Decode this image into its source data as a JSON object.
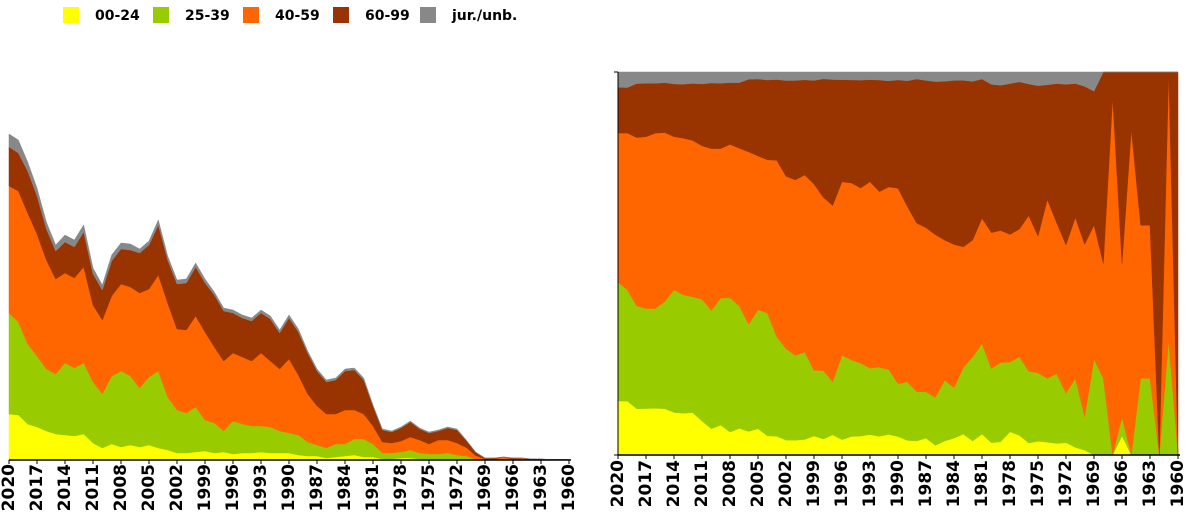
{
  "chart_data": {
    "type": "area",
    "legend": "top-left",
    "categories": [
      "2020",
      null,
      null,
      "2017",
      null,
      null,
      "2014",
      null,
      null,
      "2011",
      null,
      null,
      "2008",
      null,
      null,
      "2005",
      null,
      null,
      "2002",
      null,
      null,
      "1999",
      null,
      null,
      "1996",
      null,
      null,
      "1993",
      null,
      null,
      "1990",
      null,
      null,
      "1987",
      null,
      null,
      "1984",
      null,
      null,
      "1981",
      null,
      null,
      "1978",
      null,
      null,
      "1975",
      null,
      null,
      "1972",
      null,
      null,
      "1969",
      null,
      null,
      "1966",
      null,
      null,
      "1963",
      null,
      null,
      "1960"
    ],
    "series": [
      {
        "name": "00-24",
        "color": "#ffff00",
        "values": [
          46,
          45,
          36,
          33,
          29,
          26,
          25,
          24,
          26,
          17,
          12,
          16,
          13,
          15,
          13,
          15,
          12,
          10,
          7,
          7,
          8,
          9,
          7,
          8,
          6,
          7,
          7,
          8,
          7,
          7,
          7,
          5,
          4,
          4,
          2,
          3,
          4,
          5,
          3,
          3,
          1,
          1,
          2,
          2,
          1,
          1,
          1,
          1,
          1,
          0.4,
          0.1,
          0,
          0,
          0,
          0.1,
          0,
          0,
          0,
          0,
          0,
          0
        ]
      },
      {
        "name": "25-39",
        "color": "#99cc00",
        "values": [
          101,
          93,
          80,
          71,
          62,
          60,
          72,
          68,
          71,
          61,
          54,
          68,
          76,
          69,
          59,
          68,
          77,
          53,
          43,
          40,
          45,
          31,
          30,
          21,
          33,
          29,
          27,
          26,
          26,
          22,
          20,
          20,
          14,
          11,
          10,
          13,
          12,
          16,
          18,
          13,
          6,
          6,
          6,
          8,
          6,
          5,
          5,
          6,
          4,
          3.6,
          0.7,
          0.5,
          0.4,
          0,
          0.1,
          0,
          0.2,
          0.2,
          0,
          0.15,
          0
        ]
      },
      {
        "name": "40-59",
        "color": "#ff6600",
        "values": [
          127,
          131,
          131,
          122,
          109,
          95,
          90,
          90,
          96,
          77,
          74,
          80,
          87,
          89,
          95,
          88,
          96,
          94,
          81,
          83,
          91,
          88,
          76,
          70,
          68,
          67,
          65,
          73,
          66,
          62,
          74,
          60,
          48,
          39,
          34,
          30,
          34,
          29,
          25,
          18,
          11,
          10,
          11,
          13,
          13,
          10,
          14,
          13,
          12,
          8.4,
          3.6,
          0.7,
          0.6,
          2.8,
          0.8,
          1.7,
          0.4,
          0.4,
          0,
          0.35,
          0
        ]
      },
      {
        "name": "60-99",
        "color": "#993300",
        "values": [
          39,
          38,
          42,
          38,
          31,
          28,
          31,
          31,
          35,
          31,
          30,
          35,
          35,
          37,
          40,
          44,
          50,
          43,
          45,
          47,
          49,
          49,
          52,
          50,
          40,
          39,
          40,
          40,
          42,
          36,
          41,
          43,
          41,
          35,
          32,
          34,
          39,
          40,
          34,
          20,
          12,
          11,
          13,
          15,
          11,
          11,
          9,
          12,
          13,
          7,
          3.3,
          0.7,
          1,
          0.2,
          1,
          0.3,
          0.4,
          0.4,
          0.5,
          0,
          0.5
        ]
      },
      {
        "name": "jur./unb.",
        "color": "#888888",
        "values": [
          13,
          13,
          9,
          8,
          7,
          6,
          7,
          7,
          7,
          6,
          5,
          6,
          6,
          6,
          4,
          4,
          5,
          4,
          4,
          4,
          4,
          4,
          3,
          3,
          3,
          3,
          3,
          3,
          3,
          3,
          3,
          3,
          2,
          2,
          2,
          2,
          2,
          2,
          2,
          1,
          1,
          1,
          1,
          1,
          1,
          1,
          1,
          1,
          1,
          0.6,
          0.3,
          0.1,
          0,
          0,
          0,
          0,
          0,
          0,
          0,
          0,
          0
        ]
      }
    ],
    "panels": [
      {
        "stacking": "absolute",
        "ylim": [
          0,
          340
        ]
      },
      {
        "stacking": "percent",
        "ylim": [
          0,
          100
        ]
      }
    ]
  }
}
